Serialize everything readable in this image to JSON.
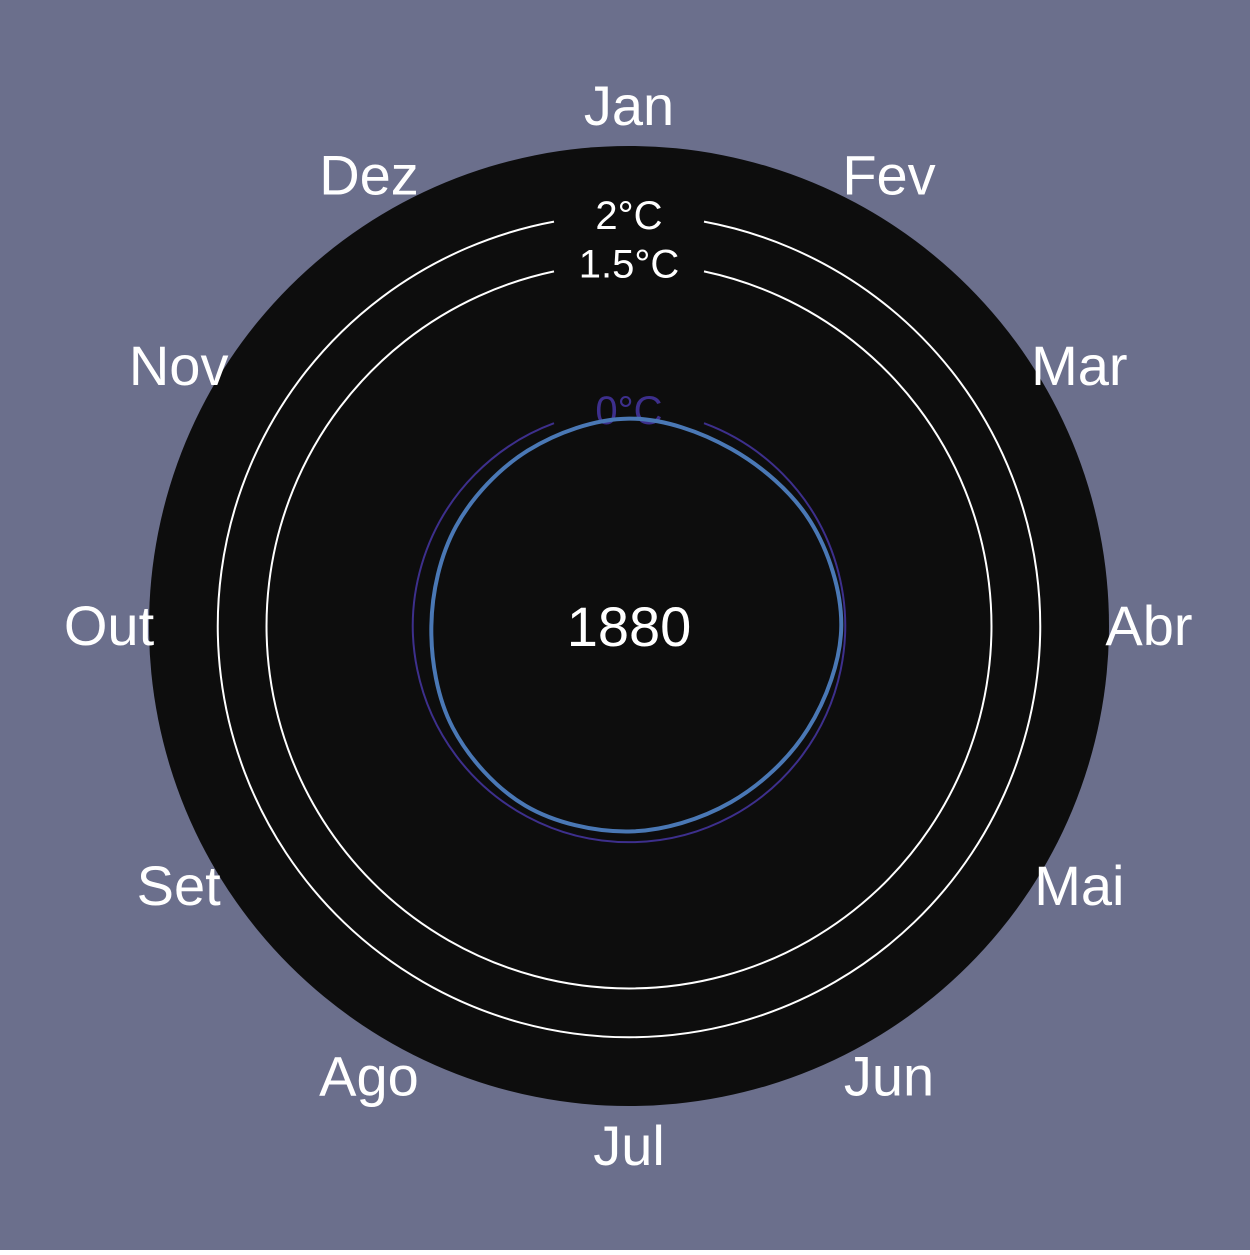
{
  "chart_data": {
    "type": "line",
    "coordinate_system": "polar",
    "title": "",
    "center_label": "1880",
    "months": [
      "Jan",
      "Fev",
      "Mar",
      "Abr",
      "Mai",
      "Jun",
      "Jul",
      "Ago",
      "Set",
      "Out",
      "Nov",
      "Dez"
    ],
    "reference_rings": [
      {
        "value": 2.0,
        "label": "2°C",
        "color": "#ffffff"
      },
      {
        "value": 1.5,
        "label": "1.5°C",
        "color": "#ffffff"
      },
      {
        "value": 0.0,
        "label": "0°C",
        "color": "#3d2f8c"
      }
    ],
    "radial_range": [
      -1.95,
      2.5
    ],
    "series": [
      {
        "x": [
          "Jan",
          "Fev",
          "Mar",
          "Abr",
          "Mai",
          "Jun",
          "Jul",
          "Ago",
          "Set",
          "Out",
          "Nov",
          "Dez"
        ],
        "values": [
          -0.09,
          -0.12,
          -0.07,
          -0.04,
          -0.1,
          -0.13,
          -0.11,
          -0.09,
          -0.13,
          -0.19,
          -0.17,
          -0.14
        ],
        "color": "#4a78b5"
      }
    ],
    "colors": {
      "background": "#6b6f8c",
      "plot_panel": "#0d0d0d",
      "text": "#ffffff"
    }
  }
}
